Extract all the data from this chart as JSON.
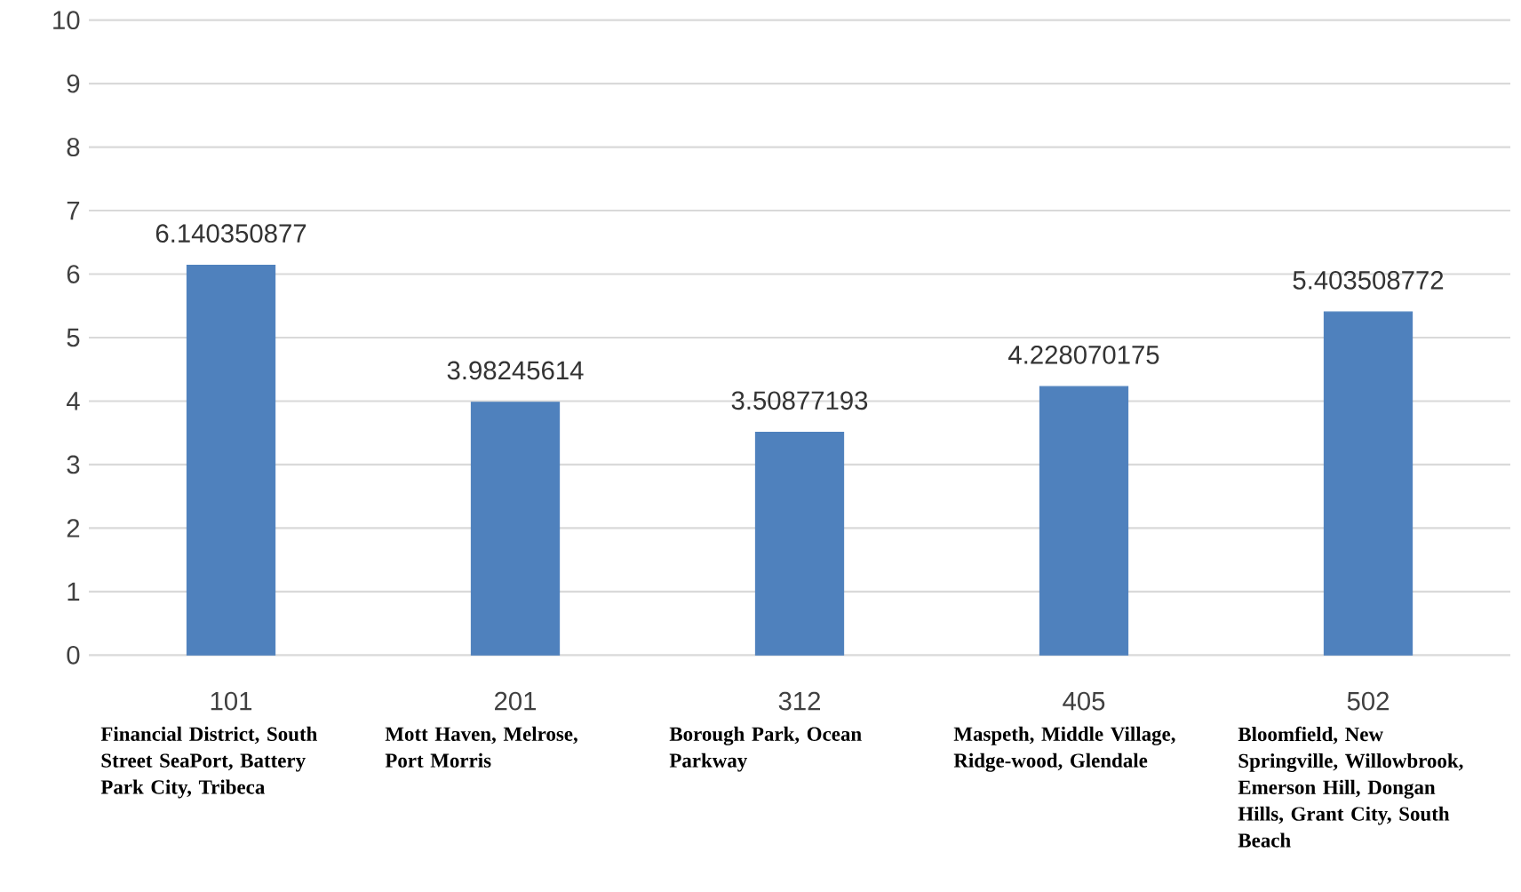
{
  "chart_data": {
    "type": "bar",
    "categories": [
      "101",
      "201",
      "312",
      "405",
      "502"
    ],
    "values": [
      6.140350877,
      3.98245614,
      3.50877193,
      4.228070175,
      5.403508772
    ],
    "color": "#4f81bd",
    "ylim": [
      0,
      10
    ],
    "yticks": [
      0,
      1,
      2,
      3,
      4,
      5,
      6,
      7,
      8,
      9,
      10
    ],
    "grid": "y",
    "data_labels": true,
    "annotations": [
      "Financial District, South Street SeaPort, Battery Park City, Tribeca",
      "Mott Haven, Melrose, Port Morris",
      "Borough Park, Ocean Parkway",
      "Maspeth, Middle Village, Ridge-wood, Glendale",
      "Bloomfield, New Springville, Willowbrook, Emerson Hill, Dongan Hills, Grant City, South Beach"
    ]
  }
}
